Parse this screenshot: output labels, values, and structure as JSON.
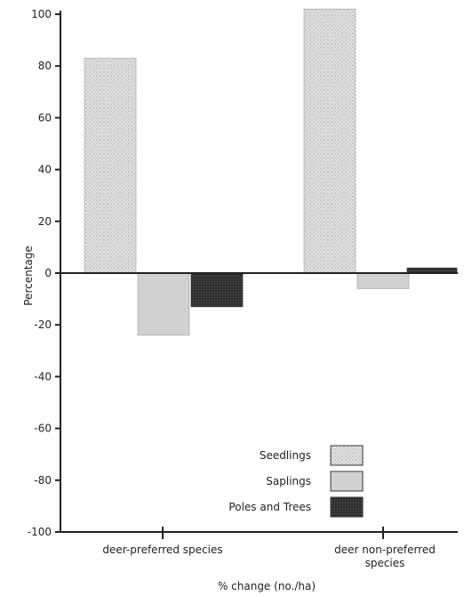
{
  "chart_data": {
    "type": "bar",
    "title": "",
    "ylabel": "Percentage",
    "xlabel": "% change (no./ha)",
    "ylim": [
      -100,
      100
    ],
    "yticks": [
      100,
      80,
      60,
      40,
      20,
      0,
      -20,
      -40,
      -60,
      -80,
      -100
    ],
    "categories": [
      "deer-preferred species",
      "deer non-preferred species"
    ],
    "series": [
      {
        "name": "Seedlings",
        "values": [
          83,
          102
        ],
        "color": "#d8d8d8",
        "pattern": "dotted"
      },
      {
        "name": "Saplings",
        "values": [
          -24,
          -6
        ],
        "color": "#cfcfcf",
        "pattern": "light"
      },
      {
        "name": "Poles and Trees",
        "values": [
          -13,
          2
        ],
        "color": "#3a3a3a",
        "pattern": "dark"
      }
    ],
    "legend_position": "bottom-right",
    "grid": false
  }
}
